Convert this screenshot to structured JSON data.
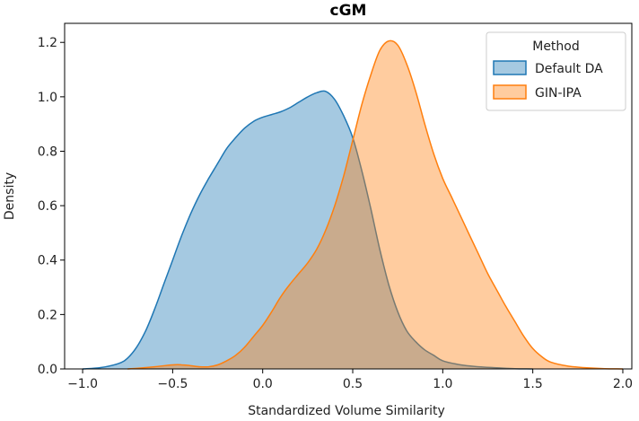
{
  "chart_data": {
    "type": "area",
    "title": "cGM",
    "xlabel": "Standardized Volume Similarity",
    "ylabel": "Density",
    "xlim": [
      -1.1,
      2.05
    ],
    "ylim": [
      0,
      1.27
    ],
    "xticks": [
      -1.0,
      -0.5,
      0.0,
      0.5,
      1.0,
      1.5,
      2.0
    ],
    "xtick_labels": [
      "−1.0",
      "−0.5",
      "0.0",
      "0.5",
      "1.0",
      "1.5",
      "2.0"
    ],
    "yticks": [
      0.0,
      0.2,
      0.4,
      0.6,
      0.8,
      1.0,
      1.2
    ],
    "ytick_labels": [
      "0.0",
      "0.2",
      "0.4",
      "0.6",
      "0.8",
      "1.0",
      "1.2"
    ],
    "grid": false,
    "legend": {
      "title": "Method",
      "placement": "top-right"
    },
    "series": [
      {
        "name": "Default DA",
        "color": "#1f77b4",
        "points": [
          [
            -1.0,
            0.0
          ],
          [
            -0.9,
            0.005
          ],
          [
            -0.8,
            0.02
          ],
          [
            -0.75,
            0.04
          ],
          [
            -0.7,
            0.08
          ],
          [
            -0.65,
            0.14
          ],
          [
            -0.6,
            0.22
          ],
          [
            -0.55,
            0.31
          ],
          [
            -0.5,
            0.4
          ],
          [
            -0.45,
            0.49
          ],
          [
            -0.4,
            0.57
          ],
          [
            -0.35,
            0.64
          ],
          [
            -0.3,
            0.7
          ],
          [
            -0.25,
            0.755
          ],
          [
            -0.2,
            0.81
          ],
          [
            -0.15,
            0.85
          ],
          [
            -0.1,
            0.885
          ],
          [
            -0.05,
            0.91
          ],
          [
            0.0,
            0.925
          ],
          [
            0.05,
            0.935
          ],
          [
            0.1,
            0.945
          ],
          [
            0.15,
            0.96
          ],
          [
            0.2,
            0.98
          ],
          [
            0.25,
            1.0
          ],
          [
            0.3,
            1.015
          ],
          [
            0.35,
            1.02
          ],
          [
            0.4,
            0.99
          ],
          [
            0.45,
            0.93
          ],
          [
            0.5,
            0.85
          ],
          [
            0.55,
            0.73
          ],
          [
            0.6,
            0.59
          ],
          [
            0.65,
            0.44
          ],
          [
            0.7,
            0.31
          ],
          [
            0.75,
            0.21
          ],
          [
            0.8,
            0.14
          ],
          [
            0.85,
            0.1
          ],
          [
            0.9,
            0.07
          ],
          [
            0.95,
            0.05
          ],
          [
            1.0,
            0.03
          ],
          [
            1.1,
            0.015
          ],
          [
            1.2,
            0.008
          ],
          [
            1.3,
            0.004
          ],
          [
            1.4,
            0.001
          ],
          [
            1.5,
            0.0
          ]
        ]
      },
      {
        "name": "GIN-IPA",
        "color": "#ff7f0e",
        "points": [
          [
            -0.75,
            0.0
          ],
          [
            -0.7,
            0.002
          ],
          [
            -0.6,
            0.008
          ],
          [
            -0.5,
            0.015
          ],
          [
            -0.45,
            0.015
          ],
          [
            -0.4,
            0.012
          ],
          [
            -0.35,
            0.008
          ],
          [
            -0.3,
            0.008
          ],
          [
            -0.25,
            0.015
          ],
          [
            -0.2,
            0.03
          ],
          [
            -0.15,
            0.05
          ],
          [
            -0.1,
            0.08
          ],
          [
            -0.05,
            0.12
          ],
          [
            0.0,
            0.16
          ],
          [
            0.05,
            0.21
          ],
          [
            0.1,
            0.265
          ],
          [
            0.15,
            0.31
          ],
          [
            0.2,
            0.35
          ],
          [
            0.25,
            0.39
          ],
          [
            0.3,
            0.44
          ],
          [
            0.35,
            0.51
          ],
          [
            0.4,
            0.6
          ],
          [
            0.45,
            0.71
          ],
          [
            0.5,
            0.84
          ],
          [
            0.55,
            0.97
          ],
          [
            0.6,
            1.08
          ],
          [
            0.65,
            1.17
          ],
          [
            0.7,
            1.205
          ],
          [
            0.75,
            1.19
          ],
          [
            0.8,
            1.12
          ],
          [
            0.85,
            1.02
          ],
          [
            0.9,
            0.9
          ],
          [
            0.95,
            0.79
          ],
          [
            1.0,
            0.7
          ],
          [
            1.05,
            0.63
          ],
          [
            1.1,
            0.56
          ],
          [
            1.15,
            0.49
          ],
          [
            1.2,
            0.42
          ],
          [
            1.25,
            0.35
          ],
          [
            1.3,
            0.29
          ],
          [
            1.35,
            0.23
          ],
          [
            1.4,
            0.175
          ],
          [
            1.45,
            0.12
          ],
          [
            1.5,
            0.075
          ],
          [
            1.55,
            0.045
          ],
          [
            1.6,
            0.025
          ],
          [
            1.7,
            0.01
          ],
          [
            1.8,
            0.004
          ],
          [
            1.9,
            0.001
          ],
          [
            2.0,
            0.0
          ]
        ]
      }
    ]
  }
}
